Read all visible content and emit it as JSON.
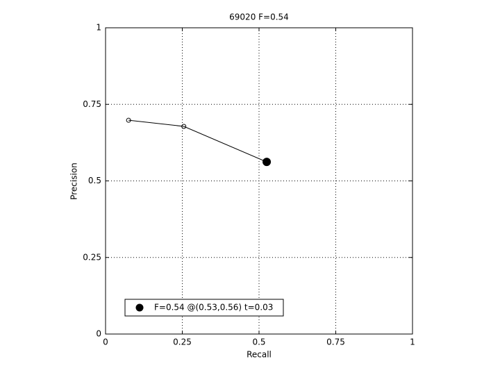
{
  "chart_data": {
    "type": "line",
    "title": "69020 F=0.54",
    "x_label": "Recall",
    "y_label": "Precision",
    "xlim": [
      0,
      1
    ],
    "ylim": [
      0,
      1
    ],
    "xticks": [
      0,
      0.25,
      0.5,
      0.75,
      1
    ],
    "yticks": [
      0,
      0.25,
      0.5,
      0.75,
      1
    ],
    "grid": true,
    "legend_position": "lower left",
    "series": [
      {
        "x": [
          0.075,
          0.255,
          0.525
        ],
        "values": [
          0.698,
          0.678,
          0.562
        ],
        "color": "#000000",
        "marker": "open-circle"
      },
      {
        "name": "F=0.54 @(0.53,0.56) t=0.03",
        "x": [
          0.525
        ],
        "values": [
          0.562
        ],
        "color": "#000000",
        "marker": "filled-circle"
      }
    ]
  }
}
